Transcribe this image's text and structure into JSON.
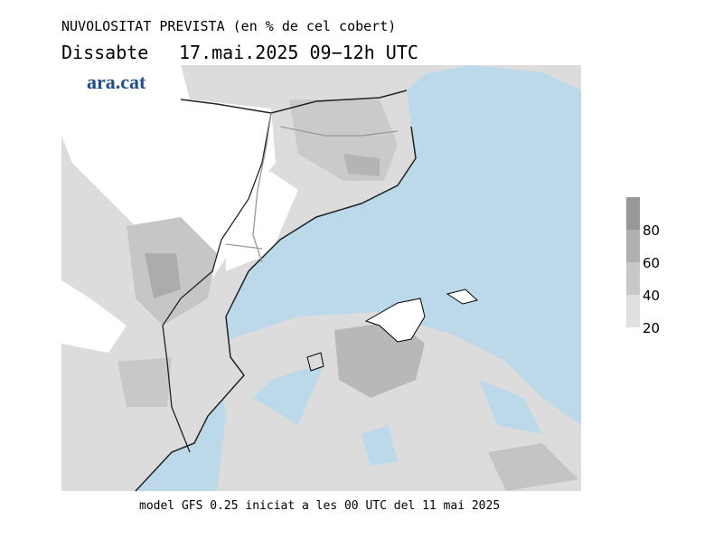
{
  "header": {
    "title": "NUVOLOSITAT PREVISTA (en % de cel cobert)",
    "day": "Dissabte",
    "period": "17.mai.2025 09−12h UTC"
  },
  "logo": "ara.cat",
  "footer": "model GFS 0.25 iniciat a les 00 UTC del 11 mai 2025",
  "colorbar": {
    "range": [
      20,
      100
    ],
    "ticks": [
      20,
      40,
      60,
      80
    ],
    "colors": [
      "#e0e0e0",
      "#c8c8c8",
      "#b0b0b0",
      "#989898"
    ]
  }
}
